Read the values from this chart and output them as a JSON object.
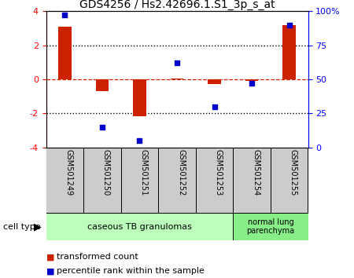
{
  "title": "GDS4256 / Hs2.42696.1.S1_3p_s_at",
  "samples": [
    "GSM501249",
    "GSM501250",
    "GSM501251",
    "GSM501252",
    "GSM501253",
    "GSM501254",
    "GSM501255"
  ],
  "transformed_count": [
    3.1,
    -0.7,
    -2.15,
    0.05,
    -0.3,
    -0.1,
    3.2
  ],
  "percentile_rank": [
    97,
    15,
    5,
    62,
    30,
    47,
    90
  ],
  "ylim_left": [
    -4,
    4
  ],
  "ylim_right": [
    0,
    100
  ],
  "yticks_left": [
    -4,
    -2,
    0,
    2,
    4
  ],
  "yticks_right": [
    0,
    25,
    50,
    75,
    100
  ],
  "ytick_labels_right": [
    "0",
    "25",
    "50",
    "75",
    "100%"
  ],
  "bar_color": "#cc2200",
  "point_color": "#0000cc",
  "hline_dashed_color": "#cc2200",
  "hline_dotted_color": "#000000",
  "group1_label": "caseous TB granulomas",
  "group2_label": "normal lung\nparenchyma",
  "group1_color": "#bbffbb",
  "group2_color": "#88ee88",
  "cell_type_label": "cell type",
  "legend_bar_label": "transformed count",
  "legend_point_label": "percentile rank within the sample",
  "bar_width": 0.35,
  "sample_box_color": "#cccccc",
  "bg_color": "#ffffff"
}
